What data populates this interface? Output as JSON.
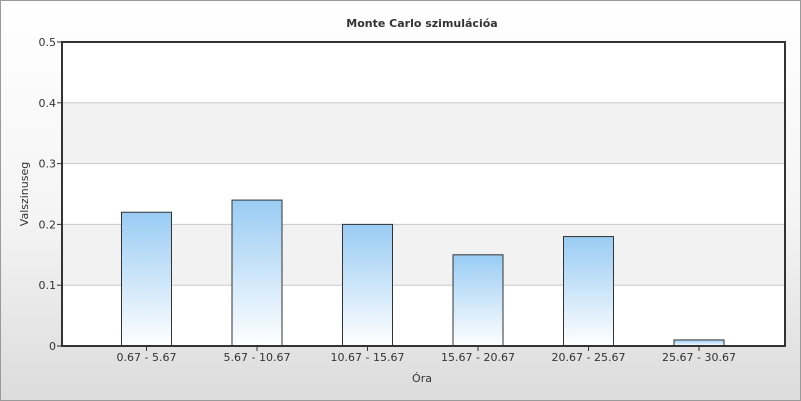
{
  "chart_data": {
    "type": "bar",
    "title": "Monte Carlo szimulációa",
    "xlabel": "Óra",
    "ylabel": "Valszinuseg",
    "categories": [
      "0.67 - 5.67",
      "5.67 - 10.67",
      "10.67 - 15.67",
      "15.67 - 20.67",
      "20.67 - 25.67",
      "25.67 - 30.67"
    ],
    "values": [
      0.22,
      0.24,
      0.2,
      0.15,
      0.18,
      0.01
    ],
    "ylim": [
      0,
      0.5
    ],
    "yticks": [
      "0",
      "0.1",
      "0.2",
      "0.3",
      "0.4",
      "0.5"
    ],
    "grid": true,
    "legend": "none",
    "colors": {
      "bar_top": "#99ccf4",
      "bar_bottom": "#ffffff",
      "bar_stroke": "#333333",
      "band": "#f2f2f2"
    }
  }
}
